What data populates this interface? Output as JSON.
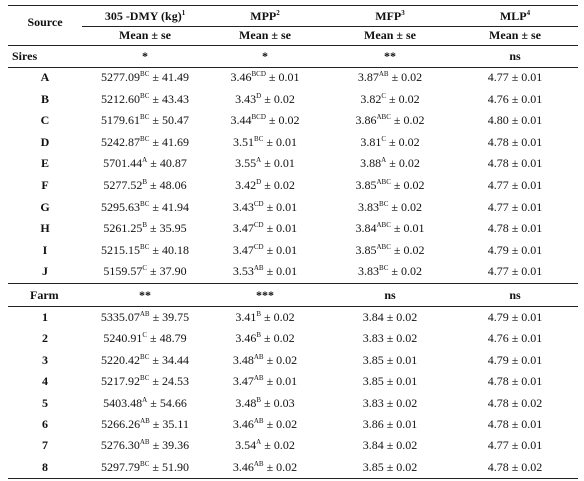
{
  "table": {
    "header": [
      {
        "text": "Source"
      },
      {
        "text": "305 -DMY (kg)",
        "sup": "1"
      },
      {
        "text": "MPP",
        "sup": "2"
      },
      {
        "text": "MFP",
        "sup": "3"
      },
      {
        "text": "MLP",
        "sup": "4"
      }
    ],
    "subheader": [
      "Mean ± se",
      "Mean ± se",
      "Mean ± se",
      "Mean ± se"
    ],
    "sections": [
      {
        "label": "Sires",
        "signif": [
          "*",
          "*",
          "**",
          "ns"
        ],
        "rows": [
          {
            "label": "A",
            "cells": [
              {
                "text": "5277.09",
                "sup": "BC",
                "tail": "± 41.49"
              },
              {
                "text": "3.46",
                "sup": "BCD",
                "tail": "± 0.01"
              },
              {
                "text": "3.87",
                "sup": "AB",
                "tail": "± 0.02"
              },
              "4.77 ± 0.01"
            ]
          },
          {
            "label": "B",
            "cells": [
              {
                "text": "5212.60",
                "sup": "BC",
                "tail": "± 43.43"
              },
              {
                "text": "3.43",
                "sup": "D",
                "tail": "± 0.02"
              },
              {
                "text": "3.82",
                "sup": "C",
                "tail": "± 0.02"
              },
              "4.76 ± 0.01"
            ]
          },
          {
            "label": "C",
            "cells": [
              {
                "text": "5179.61",
                "sup": "BC",
                "tail": "± 50.47"
              },
              {
                "text": "3.44",
                "sup": "BCD",
                "tail": "± 0.02"
              },
              {
                "text": "3.86",
                "sup": "ABC",
                "tail": "± 0.02"
              },
              "4.80 ± 0.01"
            ]
          },
          {
            "label": "D",
            "cells": [
              {
                "text": "5242.87",
                "sup": "BC",
                "tail": "± 41.69"
              },
              {
                "text": "3.51",
                "sup": "BC",
                "tail": "± 0.01"
              },
              {
                "text": "3.81",
                "sup": "C",
                "tail": "± 0.02"
              },
              "4.78 ± 0.01"
            ]
          },
          {
            "label": "E",
            "cells": [
              {
                "text": "5701.44",
                "sup": "A",
                "tail": "± 40.87"
              },
              {
                "text": "3.55",
                "sup": "A",
                "tail": "± 0.01"
              },
              {
                "text": "3.88",
                "sup": "A",
                "tail": "± 0.02"
              },
              "4.78 ± 0.01"
            ]
          },
          {
            "label": "F",
            "cells": [
              {
                "text": "5277.52",
                "sup": "B",
                "tail": "± 48.06"
              },
              {
                "text": "3.42",
                "sup": "D",
                "tail": "± 0.02"
              },
              {
                "text": "3.85",
                "sup": "ABC",
                "tail": "± 0.02"
              },
              "4.77 ± 0.01"
            ]
          },
          {
            "label": "G",
            "cells": [
              {
                "text": "5295.63",
                "sup": "BC",
                "tail": "± 41.94"
              },
              {
                "text": "3.43",
                "sup": "CD",
                "tail": "± 0.01"
              },
              {
                "text": "3.83",
                "sup": "BC",
                "tail": "± 0.02"
              },
              "4.77 ± 0.01"
            ]
          },
          {
            "label": "H",
            "cells": [
              {
                "text": "5261.25",
                "sup": "B",
                "tail": "± 35.95"
              },
              {
                "text": "3.47",
                "sup": "CD",
                "tail": "± 0.01"
              },
              {
                "text": "3.84",
                "sup": "ABC",
                "tail": "± 0.01"
              },
              "4.78 ± 0.01"
            ]
          },
          {
            "label": "I",
            "cells": [
              {
                "text": "5215.15",
                "sup": "BC",
                "tail": "± 40.18"
              },
              {
                "text": "3.47",
                "sup": "CD",
                "tail": "± 0.01"
              },
              {
                "text": "3.85",
                "sup": "ABC",
                "tail": "± 0.02"
              },
              "4.79 ± 0.01"
            ]
          },
          {
            "label": "J",
            "cells": [
              {
                "text": "5159.57",
                "sup": "C",
                "tail": "± 37.90"
              },
              {
                "text": "3.53",
                "sup": "AB",
                "tail": "± 0.01"
              },
              {
                "text": "3.83",
                "sup": "BC",
                "tail": "± 0.02"
              },
              "4.77 ± 0.01"
            ]
          }
        ]
      },
      {
        "label": "Farm",
        "signif": [
          "**",
          "***",
          "ns",
          "ns"
        ],
        "rows": [
          {
            "label": "1",
            "cells": [
              {
                "text": "5335.07",
                "sup": "AB",
                "tail": "± 39.75"
              },
              {
                "text": "3.41",
                "sup": "B",
                "tail": "± 0.02"
              },
              "3.84 ± 0.02",
              "4.79 ± 0.01"
            ]
          },
          {
            "label": "2",
            "cells": [
              {
                "text": "5240.91",
                "sup": "C",
                "tail": "± 48.79"
              },
              {
                "text": "3.46",
                "sup": "B",
                "tail": "± 0.02"
              },
              "3.83 ± 0.02",
              "4.76 ± 0.01"
            ]
          },
          {
            "label": "3",
            "cells": [
              {
                "text": "5220.42",
                "sup": "BC",
                "tail": "± 34.44"
              },
              {
                "text": "3.48",
                "sup": "AB",
                "tail": "± 0.02"
              },
              "3.85 ± 0.01",
              "4.79 ± 0.01"
            ]
          },
          {
            "label": "4",
            "cells": [
              {
                "text": "5217.92",
                "sup": "BC",
                "tail": "± 24.53"
              },
              {
                "text": "3.47",
                "sup": "AB",
                "tail": "± 0.01"
              },
              "3.85 ± 0.01",
              "4.78 ± 0.01"
            ]
          },
          {
            "label": "5",
            "cells": [
              {
                "text": "5403.48",
                "sup": "A",
                "tail": "± 54.66"
              },
              {
                "text": "3.48",
                "sup": "B",
                "tail": "± 0.03"
              },
              "3.83 ± 0.02",
              "4.78 ± 0.02"
            ]
          },
          {
            "label": "6",
            "cells": [
              {
                "text": "5266.26",
                "sup": "AB",
                "tail": "± 35.11"
              },
              {
                "text": "3.46",
                "sup": "AB",
                "tail": "± 0.02"
              },
              "3.86 ± 0.01",
              "4.78 ± 0.01"
            ]
          },
          {
            "label": "7",
            "cells": [
              {
                "text": "5276.30",
                "sup": "AB",
                "tail": "± 39.36"
              },
              {
                "text": "3.54",
                "sup": "A",
                "tail": "± 0.02"
              },
              "3.84 ± 0.02",
              "4.77 ± 0.01"
            ]
          },
          {
            "label": "8",
            "cells": [
              {
                "text": "5297.79",
                "sup": "BC",
                "tail": "± 51.90"
              },
              {
                "text": "3.46",
                "sup": "AB",
                "tail": "± 0.02"
              },
              "3.85 ± 0.02",
              "4.78 ± 0.02"
            ]
          }
        ]
      }
    ]
  }
}
